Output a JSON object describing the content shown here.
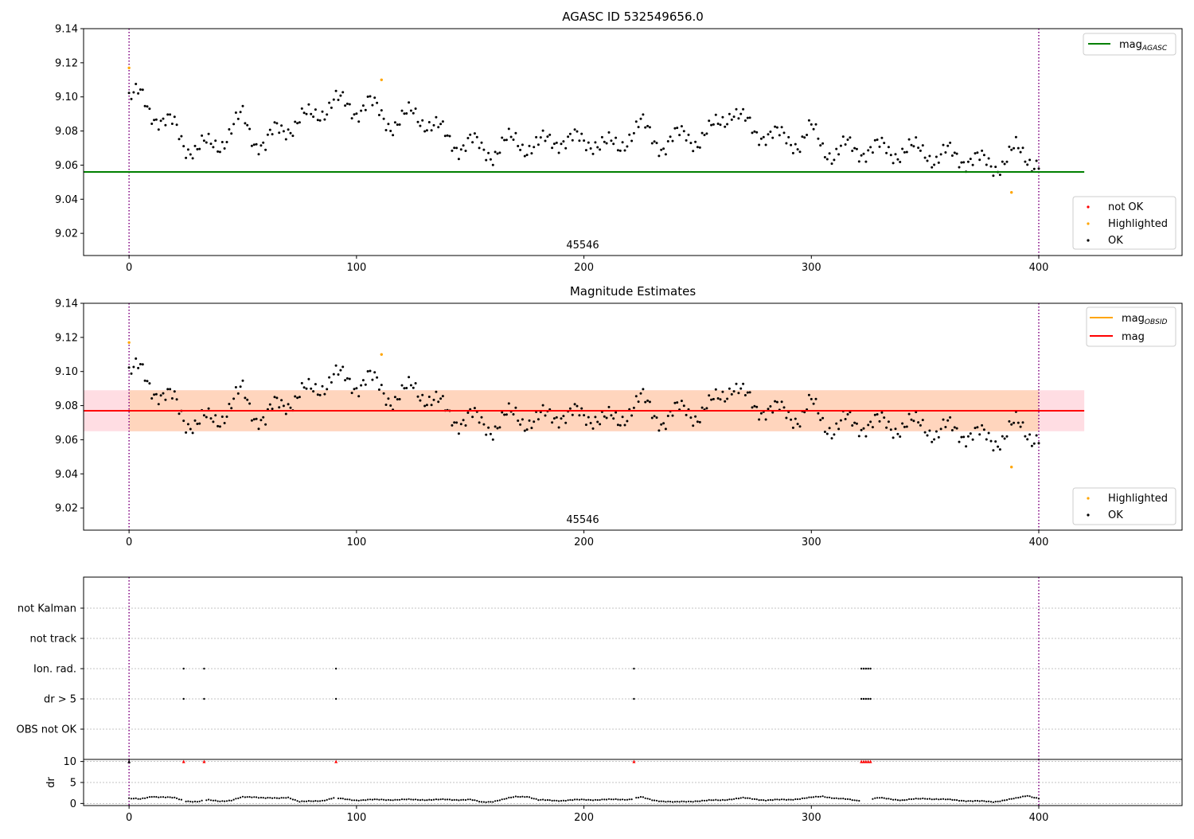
{
  "colors": {
    "ok": "#000000",
    "highlighted": "#ffa500",
    "not_ok": "#ff0000",
    "mag_agasc": "#008000",
    "mag_obsid": "#ffa500",
    "mag": "#ff0000",
    "band_outer": "#ffdde3",
    "band_inner": "#ffd5bd",
    "vline": "#800080",
    "grid": "#b0b0b0"
  },
  "chart_data": [
    {
      "type": "scatter",
      "title": "AGASC ID 532549656.0",
      "xlim": [
        -20,
        463
      ],
      "ylim": [
        9.007,
        9.14
      ],
      "xticks": [
        0,
        100,
        200,
        300,
        400
      ],
      "yticks": [
        9.02,
        9.04,
        9.06,
        9.08,
        9.1,
        9.12,
        9.14
      ],
      "annotation": "45546",
      "annotation_x": 200,
      "vlines": [
        0,
        400
      ],
      "hline": {
        "name": "mag_AGASC",
        "y": 9.056,
        "x": [
          -20,
          420
        ]
      },
      "legends": {
        "line": [
          {
            "label": "mag",
            "sub": "AGASC",
            "color": "#008000"
          }
        ],
        "points": [
          {
            "label": "not OK",
            "color": "#ff0000"
          },
          {
            "label": "Highlighted",
            "color": "#ffa500"
          },
          {
            "label": "OK",
            "color": "#000000"
          }
        ]
      },
      "series": [
        {
          "name": "OK",
          "y_control": [
            [
              0,
              9.099
            ],
            [
              5,
              9.1
            ],
            [
              10,
              9.092
            ],
            [
              15,
              9.085
            ],
            [
              20,
              9.082
            ],
            [
              25,
              9.072
            ],
            [
              30,
              9.069
            ],
            [
              35,
              9.071
            ],
            [
              40,
              9.074
            ],
            [
              45,
              9.08
            ],
            [
              50,
              9.088
            ],
            [
              55,
              9.076
            ],
            [
              60,
              9.071
            ],
            [
              65,
              9.08
            ],
            [
              70,
              9.083
            ],
            [
              75,
              9.086
            ],
            [
              80,
              9.088
            ],
            [
              85,
              9.093
            ],
            [
              90,
              9.097
            ],
            [
              95,
              9.095
            ],
            [
              100,
              9.093
            ],
            [
              105,
              9.096
            ],
            [
              110,
              9.09
            ],
            [
              115,
              9.085
            ],
            [
              120,
              9.086
            ],
            [
              125,
              9.09
            ],
            [
              130,
              9.087
            ],
            [
              135,
              9.082
            ],
            [
              140,
              9.075
            ],
            [
              145,
              9.072
            ],
            [
              150,
              9.073
            ],
            [
              155,
              9.069
            ],
            [
              160,
              9.068
            ],
            [
              165,
              9.072
            ],
            [
              170,
              9.074
            ],
            [
              175,
              9.072
            ],
            [
              180,
              9.071
            ],
            [
              185,
              9.074
            ],
            [
              190,
              9.076
            ],
            [
              195,
              9.074
            ],
            [
              200,
              9.073
            ],
            [
              205,
              9.075
            ],
            [
              210,
              9.071
            ],
            [
              215,
              9.07
            ],
            [
              220,
              9.079
            ],
            [
              225,
              9.083
            ],
            [
              230,
              9.076
            ],
            [
              235,
              9.072
            ],
            [
              240,
              9.075
            ],
            [
              245,
              9.078
            ],
            [
              250,
              9.075
            ],
            [
              255,
              9.078
            ],
            [
              260,
              9.086
            ],
            [
              265,
              9.093
            ],
            [
              270,
              9.085
            ],
            [
              275,
              9.08
            ],
            [
              280,
              9.079
            ],
            [
              285,
              9.076
            ],
            [
              290,
              9.075
            ],
            [
              295,
              9.074
            ],
            [
              300,
              9.08
            ],
            [
              305,
              9.071
            ],
            [
              310,
              9.067
            ],
            [
              315,
              9.07
            ],
            [
              320,
              9.069
            ],
            [
              325,
              9.07
            ],
            [
              330,
              9.069
            ],
            [
              335,
              9.068
            ],
            [
              340,
              9.069
            ],
            [
              345,
              9.068
            ],
            [
              350,
              9.069
            ],
            [
              355,
              9.064
            ],
            [
              360,
              9.066
            ],
            [
              365,
              9.065
            ],
            [
              370,
              9.064
            ],
            [
              375,
              9.061
            ],
            [
              380,
              9.06
            ],
            [
              385,
              9.063
            ],
            [
              390,
              9.068
            ],
            [
              395,
              9.065
            ],
            [
              400,
              9.062
            ]
          ]
        },
        {
          "name": "Highlighted",
          "points": [
            [
              0,
              9.117
            ],
            [
              111,
              9.11
            ],
            [
              388,
              9.044
            ]
          ]
        }
      ]
    },
    {
      "type": "scatter",
      "title": "Magnitude Estimates",
      "xlim": [
        -20,
        463
      ],
      "ylim": [
        9.007,
        9.14
      ],
      "xticks": [
        0,
        100,
        200,
        300,
        400
      ],
      "yticks": [
        9.02,
        9.04,
        9.06,
        9.08,
        9.1,
        9.12,
        9.14
      ],
      "annotation": "45546",
      "annotation_x": 200,
      "vlines": [
        0,
        400
      ],
      "mag": {
        "y": 9.077,
        "band_outer": [
          9.065,
          9.089
        ],
        "x": [
          -20,
          420
        ]
      },
      "mag_obsid": {
        "y": 9.077,
        "band": [
          9.065,
          9.089
        ],
        "x": [
          0,
          400
        ]
      },
      "legends": {
        "line": [
          {
            "label": "mag",
            "sub": "OBSID",
            "color": "#ffa500"
          },
          {
            "label": "mag",
            "sub": "",
            "color": "#ff0000"
          }
        ],
        "points": [
          {
            "label": "Highlighted",
            "color": "#ffa500"
          },
          {
            "label": "OK",
            "color": "#000000"
          }
        ]
      }
    },
    {
      "type": "scatter",
      "title": "",
      "xlim": [
        -20,
        463
      ],
      "categories": [
        "OBS not OK",
        "dr > 5",
        "Ion. rad.",
        "not track",
        "not Kalman"
      ],
      "flags": {
        "dr > 5": [
          24,
          33,
          91,
          222,
          322,
          323,
          324,
          325,
          326
        ],
        "Ion. rad.": [
          24,
          33,
          91,
          222,
          322,
          323,
          324,
          325,
          326
        ]
      },
      "dr_yticks": [
        0,
        5,
        10
      ],
      "dr_ylabel": "dr",
      "dr_ylim": [
        -0.5,
        10.5
      ],
      "dr_clipped_at": 10,
      "dr_clipped_x": [
        0,
        24,
        33,
        91,
        222,
        322,
        323,
        324,
        325,
        326
      ],
      "dr_control": [
        [
          0,
          1.2
        ],
        [
          5,
          1.0
        ],
        [
          10,
          1.7
        ],
        [
          15,
          1.5
        ],
        [
          20,
          1.3
        ],
        [
          25,
          0.6
        ],
        [
          30,
          0.4
        ],
        [
          35,
          0.8
        ],
        [
          40,
          0.6
        ],
        [
          45,
          0.7
        ],
        [
          50,
          1.5
        ],
        [
          55,
          1.6
        ],
        [
          60,
          1.3
        ],
        [
          65,
          1.2
        ],
        [
          70,
          1.5
        ],
        [
          75,
          0.4
        ],
        [
          80,
          0.5
        ],
        [
          85,
          0.7
        ],
        [
          90,
          1.3
        ],
        [
          95,
          1.0
        ],
        [
          100,
          0.8
        ],
        [
          110,
          0.9
        ],
        [
          120,
          0.9
        ],
        [
          130,
          0.9
        ],
        [
          140,
          0.9
        ],
        [
          150,
          0.9
        ],
        [
          155,
          0.3
        ],
        [
          160,
          0.5
        ],
        [
          165,
          1.0
        ],
        [
          170,
          1.6
        ],
        [
          175,
          1.7
        ],
        [
          180,
          0.8
        ],
        [
          190,
          0.7
        ],
        [
          200,
          0.9
        ],
        [
          210,
          0.9
        ],
        [
          220,
          1.0
        ],
        [
          225,
          1.5
        ],
        [
          230,
          0.8
        ],
        [
          240,
          0.3
        ],
        [
          250,
          0.6
        ],
        [
          260,
          0.8
        ],
        [
          270,
          1.3
        ],
        [
          280,
          0.8
        ],
        [
          290,
          0.9
        ],
        [
          300,
          1.4
        ],
        [
          305,
          1.7
        ],
        [
          310,
          1.3
        ],
        [
          315,
          1.0
        ],
        [
          320,
          0.7
        ],
        [
          330,
          1.3
        ],
        [
          340,
          0.8
        ],
        [
          350,
          1.2
        ],
        [
          360,
          0.9
        ],
        [
          370,
          0.6
        ],
        [
          380,
          0.4
        ],
        [
          390,
          1.2
        ],
        [
          395,
          1.9
        ],
        [
          400,
          1.2
        ]
      ]
    }
  ]
}
